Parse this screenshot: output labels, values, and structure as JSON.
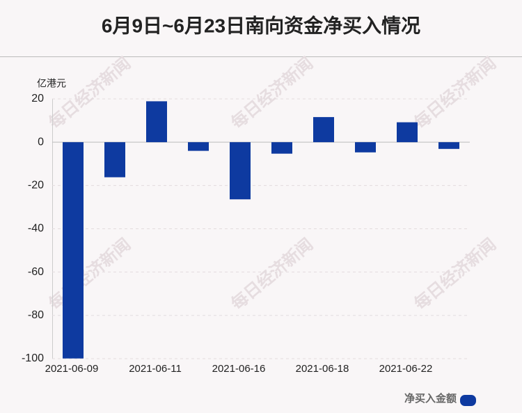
{
  "chart_data": {
    "type": "bar",
    "title": "6月9日~6月23日南向资金净买入情况",
    "y_unit": "亿港元",
    "watermark": "每日经济新闻",
    "categories": [
      "2021-06-09",
      null,
      "2021-06-11",
      null,
      "2021-06-16",
      null,
      "2021-06-18",
      null,
      "2021-06-22",
      null
    ],
    "series": [
      {
        "name": "净买入金额",
        "color": "#0e3aa0",
        "values": [
          -99.9,
          -16.2,
          18.9,
          -4.0,
          -26.4,
          -5.3,
          11.6,
          -4.7,
          9.2,
          -3.1
        ]
      }
    ],
    "ylim": [
      -100,
      20
    ],
    "yticks": [
      -100,
      -80,
      -60,
      -40,
      -20,
      0,
      20
    ],
    "grid": true
  }
}
